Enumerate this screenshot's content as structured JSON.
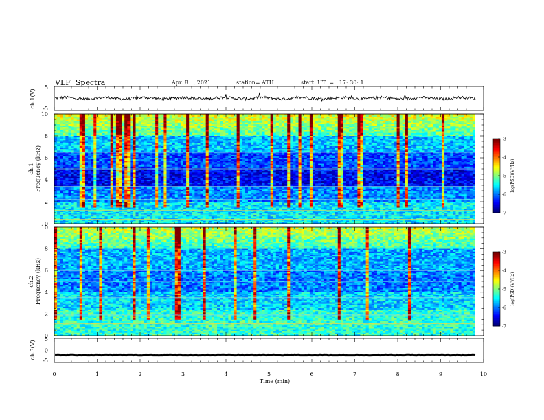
{
  "header": {
    "title": "VLF  Spectra",
    "date": "Apr. 8   , 2021",
    "station": "station= ATH",
    "start": "start  UT  =   17: 30: 1"
  },
  "chart_data": [
    {
      "type": "line",
      "panel": "ch1-waveform",
      "ylabel": "ch.1(V)",
      "ylim": [
        -5,
        5
      ],
      "yticks": [
        "5",
        "-5"
      ],
      "xlim": [
        0,
        10
      ],
      "series": [
        {
          "values_summary": "noisy trace centred near 0 V, amplitude about ±1 V, spanning 0 to 9.8 min"
        }
      ],
      "color": "#000000"
    },
    {
      "type": "heatmap",
      "panel": "ch1-spectrogram",
      "ylabel": "ch.1\nFrequency  (kHz)",
      "ylim": [
        0,
        10
      ],
      "yticks": [
        "0",
        "2",
        "4",
        "6",
        "8",
        "10"
      ],
      "xlim": [
        0,
        9.8
      ],
      "colorbar": {
        "label": "log(PSD)(V²/Hz)",
        "range": [
          -7,
          -3
        ],
        "ticks": [
          "-3",
          "-4",
          "-5",
          "-6",
          "-7"
        ]
      }
    },
    {
      "type": "heatmap",
      "panel": "ch2-spectrogram",
      "ylabel": "ch.2\nFrequency  (kHz)",
      "ylim": [
        0,
        10
      ],
      "yticks": [
        "0",
        "2",
        "4",
        "6",
        "8",
        "10"
      ],
      "xlim": [
        0,
        9.8
      ],
      "colorbar": {
        "label": "log(PSD)(V²/Hz)",
        "range": [
          -7,
          -3
        ],
        "ticks": [
          "-3",
          "-4",
          "-5",
          "-6",
          "-7"
        ]
      }
    },
    {
      "type": "line",
      "panel": "ch3-waveform",
      "ylabel": "ch.3(V)",
      "ylim": [
        -5,
        5
      ],
      "yticks": [
        "5",
        "0",
        "-5"
      ],
      "xlim": [
        0,
        10
      ],
      "series": [
        {
          "values_summary": "nearly flat thick trace at about -2 V"
        }
      ],
      "color": "#000000"
    }
  ],
  "xaxis": {
    "label": "Time  (min)",
    "ticks": [
      "0",
      "1",
      "2",
      "3",
      "4",
      "5",
      "6",
      "7",
      "8",
      "9",
      "10"
    ]
  }
}
